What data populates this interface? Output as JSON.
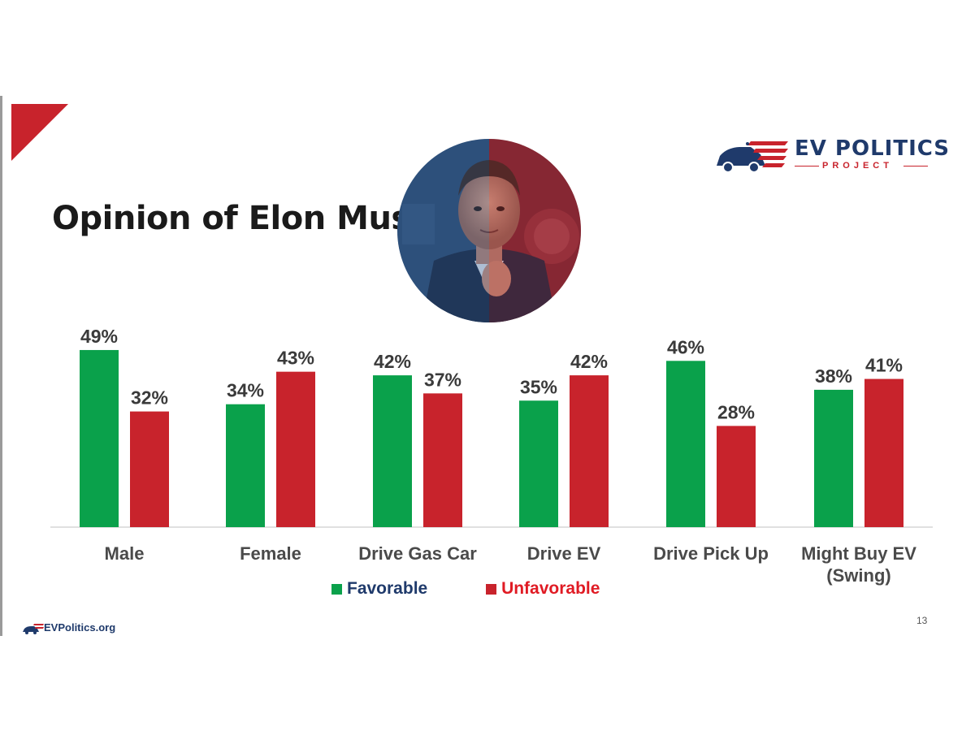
{
  "slide": {
    "title": "Opinion of Elon Musk",
    "page_number": "13"
  },
  "logo": {
    "name": "EV POLITICS",
    "subtitle": "PROJECT"
  },
  "footer": {
    "site": "EVPolitics.org"
  },
  "colors": {
    "favorable": "#0aa14b",
    "unfavorable": "#c8232c",
    "favorable_legend_text": "#1f3a6b",
    "unfavorable_legend_text": "#e01b24",
    "brand_blue": "#1f3a6b",
    "brand_red": "#c8232c"
  },
  "icons": [
    "ev-car-flag-logo-icon",
    "corner-triangle-icon",
    "portrait-image"
  ],
  "chart_data": {
    "type": "bar",
    "title": "Opinion of Elon Musk",
    "xlabel": "",
    "ylabel": "",
    "categories": [
      "Male",
      "Female",
      "Drive Gas Car",
      "Drive EV",
      "Drive Pick Up",
      "Might Buy EV (Swing)"
    ],
    "category_lines": [
      [
        "Male"
      ],
      [
        "Female"
      ],
      [
        "Drive Gas Car"
      ],
      [
        "Drive EV"
      ],
      [
        "Drive Pick Up"
      ],
      [
        "Might Buy EV",
        "(Swing)"
      ]
    ],
    "series": [
      {
        "name": "Favorable",
        "values": [
          49,
          34,
          42,
          35,
          46,
          38
        ]
      },
      {
        "name": "Unfavorable",
        "values": [
          32,
          43,
          37,
          42,
          28,
          41
        ]
      }
    ],
    "value_labels": [
      [
        "49%",
        "34%",
        "42%",
        "35%",
        "46%",
        "38%"
      ],
      [
        "32%",
        "43%",
        "37%",
        "42%",
        "28%",
        "41%"
      ]
    ],
    "ylim": [
      0,
      50
    ],
    "grid": false,
    "legend": "bottom-center"
  }
}
